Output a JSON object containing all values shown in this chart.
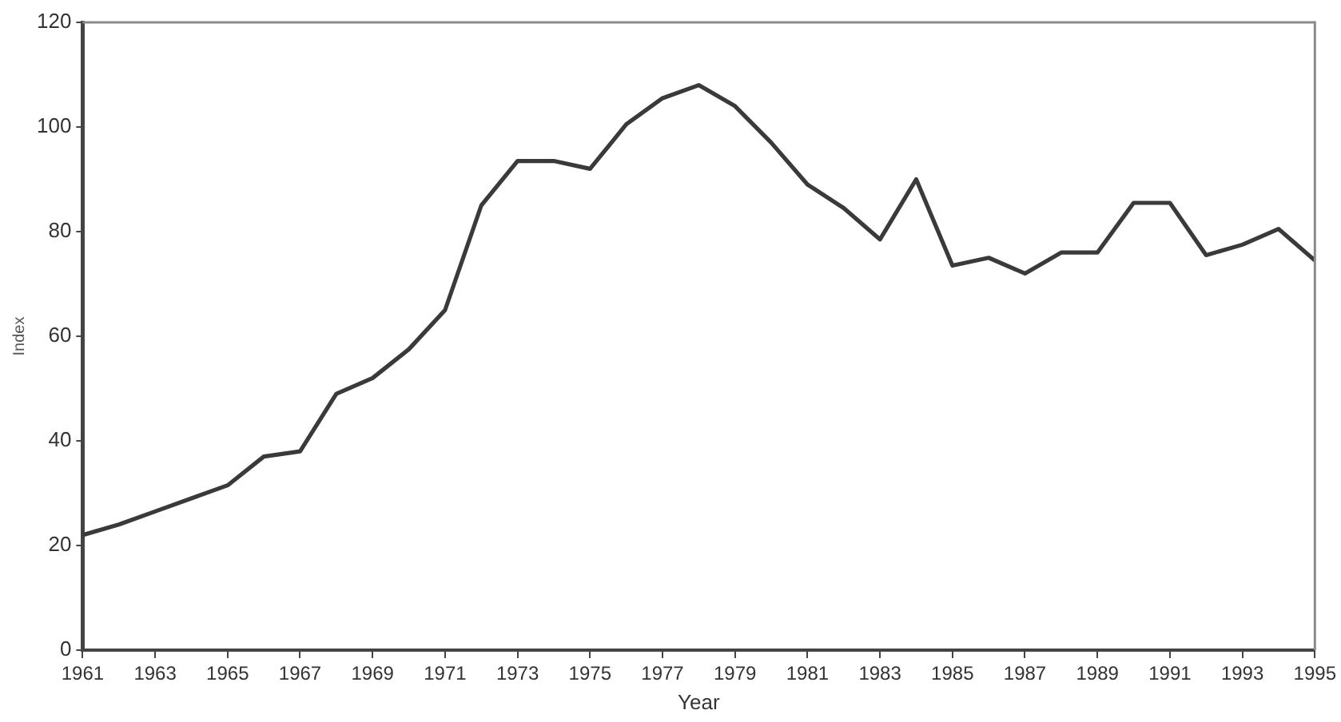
{
  "chart_data": {
    "type": "line",
    "xlabel": "Year",
    "ylabel": "Index",
    "x": [
      1961,
      1962,
      1963,
      1964,
      1965,
      1966,
      1967,
      1968,
      1969,
      1970,
      1971,
      1972,
      1973,
      1974,
      1975,
      1976,
      1977,
      1978,
      1979,
      1980,
      1981,
      1982,
      1983,
      1984,
      1985,
      1986,
      1987,
      1988,
      1989,
      1990,
      1991,
      1992,
      1993,
      1994,
      1995
    ],
    "series": [
      {
        "color": "#3a3a3a",
        "values": [
          22,
          24,
          26.5,
          29,
          31.5,
          37,
          38,
          49,
          52,
          57.5,
          65,
          85,
          93.5,
          93.5,
          92,
          100.5,
          105.5,
          108,
          104,
          97,
          89,
          84.5,
          78.5,
          90,
          73.5,
          75,
          72,
          76,
          76,
          85.5,
          85.5,
          75.5,
          77.5,
          80.5,
          74.5
        ]
      }
    ],
    "xlim": [
      1961,
      1995
    ],
    "xticks": [
      1961,
      1963,
      1965,
      1967,
      1969,
      1971,
      1973,
      1975,
      1977,
      1979,
      1981,
      1983,
      1985,
      1987,
      1989,
      1991,
      1993,
      1995
    ],
    "ylim": [
      0,
      120
    ],
    "yticks": [
      0,
      20,
      40,
      60,
      80,
      100,
      120
    ],
    "grid": false,
    "legend": false,
    "marker": "none",
    "line_style": "solid"
  }
}
